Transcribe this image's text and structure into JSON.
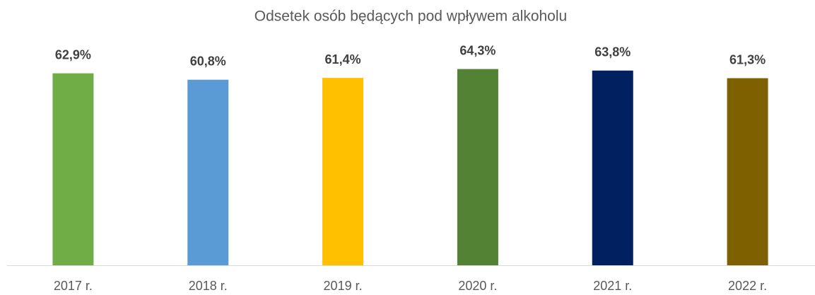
{
  "chart_data": {
    "type": "bar",
    "title": "Odsetek osób będących pod wpływem alkoholu",
    "categories": [
      "2017 r.",
      "2018 r.",
      "2019 r.",
      "2020 r.",
      "2021 r.",
      "2022 r."
    ],
    "values": [
      62.9,
      60.8,
      61.4,
      64.3,
      63.8,
      61.3
    ],
    "value_labels": [
      "62,9%",
      "60,8%",
      "61,4%",
      "64,3%",
      "63,8%",
      "61,3%"
    ],
    "colors": [
      "#70ad47",
      "#5b9bd5",
      "#ffc000",
      "#548235",
      "#002060",
      "#7f6000"
    ],
    "ylim": [
      0,
      70
    ]
  }
}
